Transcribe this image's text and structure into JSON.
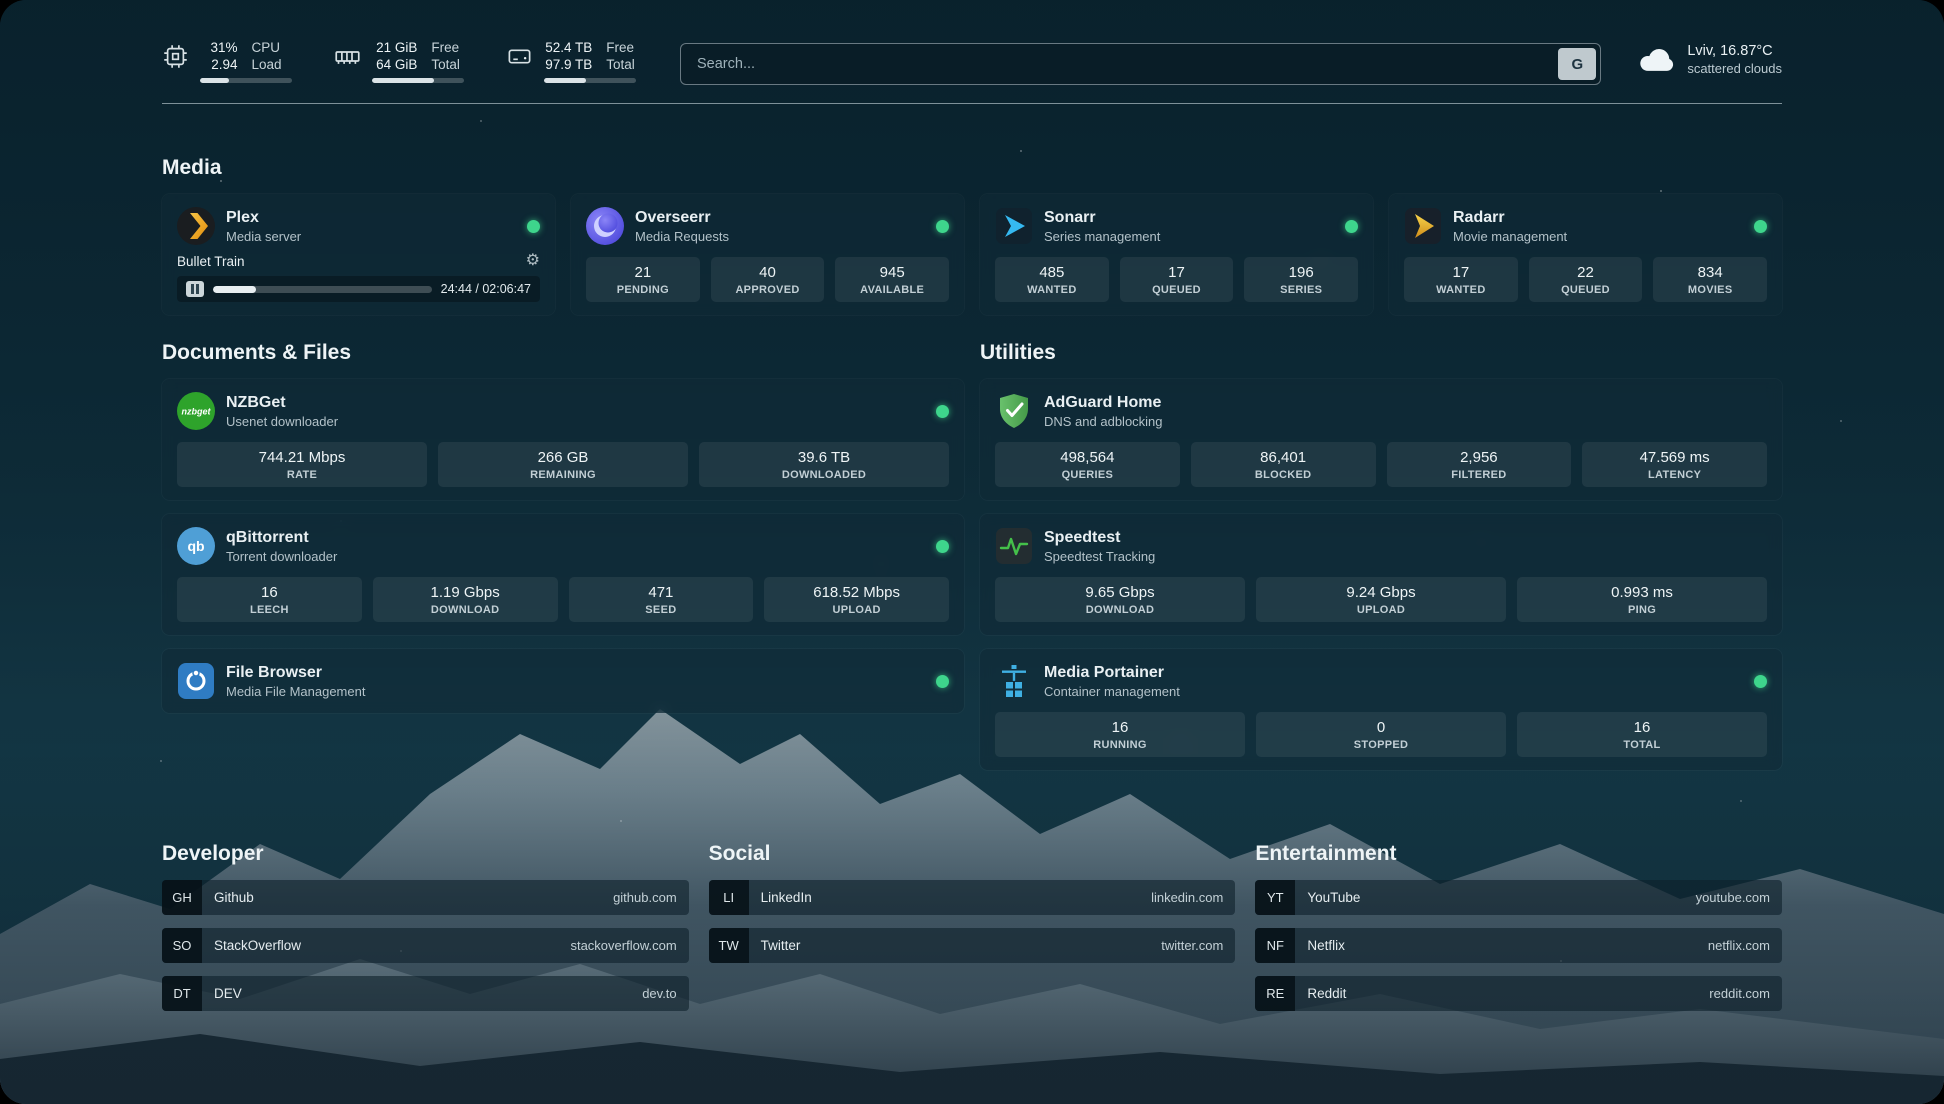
{
  "header": {
    "cpu": {
      "value1": "31%",
      "label1": "CPU",
      "value2": "2.94",
      "label2": "Load",
      "progress": 31
    },
    "ram": {
      "value1": "21 GiB",
      "label1": "Free",
      "value2": "64 GiB",
      "label2": "Total",
      "progress": 67
    },
    "disk": {
      "value1": "52.4 TB",
      "label1": "Free",
      "value2": "97.9 TB",
      "label2": "Total",
      "progress": 46
    },
    "search": {
      "placeholder": "Search...",
      "engine_button": "G"
    },
    "weather": {
      "location": "Lviv, 16.87°C",
      "condition": "scattered clouds"
    }
  },
  "colors": {
    "status_online": "#3ed58c",
    "accent_green": "#44c04a"
  },
  "media": {
    "title": "Media",
    "plex": {
      "name": "Plex",
      "desc": "Media server",
      "now_playing": "Bullet Train",
      "time": "24:44 / 02:06:47",
      "progress": 19.5
    },
    "overseerr": {
      "name": "Overseerr",
      "desc": "Media Requests",
      "stats": [
        {
          "value": "21",
          "label": "PENDING"
        },
        {
          "value": "40",
          "label": "APPROVED"
        },
        {
          "value": "945",
          "label": "AVAILABLE"
        }
      ]
    },
    "sonarr": {
      "name": "Sonarr",
      "desc": "Series management",
      "stats": [
        {
          "value": "485",
          "label": "WANTED"
        },
        {
          "value": "17",
          "label": "QUEUED"
        },
        {
          "value": "196",
          "label": "SERIES"
        }
      ]
    },
    "radarr": {
      "name": "Radarr",
      "desc": "Movie management",
      "stats": [
        {
          "value": "17",
          "label": "WANTED"
        },
        {
          "value": "22",
          "label": "QUEUED"
        },
        {
          "value": "834",
          "label": "MOVIES"
        }
      ]
    }
  },
  "documents": {
    "title": "Documents & Files",
    "nzbget": {
      "name": "NZBGet",
      "desc": "Usenet downloader",
      "icon_text": "nzbget",
      "stats": [
        {
          "value": "744.21 Mbps",
          "label": "RATE"
        },
        {
          "value": "266 GB",
          "label": "REMAINING"
        },
        {
          "value": "39.6 TB",
          "label": "DOWNLOADED"
        }
      ]
    },
    "qbittorrent": {
      "name": "qBittorrent",
      "desc": "Torrent downloader",
      "icon_text": "qb",
      "stats": [
        {
          "value": "16",
          "label": "LEECH"
        },
        {
          "value": "1.19 Gbps",
          "label": "DOWNLOAD"
        },
        {
          "value": "471",
          "label": "SEED"
        },
        {
          "value": "618.52 Mbps",
          "label": "UPLOAD"
        }
      ]
    },
    "filebrowser": {
      "name": "File Browser",
      "desc": "Media File Management"
    }
  },
  "utilities": {
    "title": "Utilities",
    "adguard": {
      "name": "AdGuard Home",
      "desc": "DNS and adblocking",
      "stats": [
        {
          "value": "498,564",
          "label": "QUERIES"
        },
        {
          "value": "86,401",
          "label": "BLOCKED"
        },
        {
          "value": "2,956",
          "label": "FILTERED"
        },
        {
          "value": "47.569 ms",
          "label": "LATENCY"
        }
      ]
    },
    "speedtest": {
      "name": "Speedtest",
      "desc": "Speedtest Tracking",
      "stats": [
        {
          "value": "9.65 Gbps",
          "label": "DOWNLOAD"
        },
        {
          "value": "9.24 Gbps",
          "label": "UPLOAD"
        },
        {
          "value": "0.993 ms",
          "label": "PING"
        }
      ]
    },
    "portainer": {
      "name": "Media Portainer",
      "desc": "Container management",
      "stats": [
        {
          "value": "16",
          "label": "RUNNING"
        },
        {
          "value": "0",
          "label": "STOPPED"
        },
        {
          "value": "16",
          "label": "TOTAL"
        }
      ]
    }
  },
  "bookmarks": {
    "developer": {
      "title": "Developer",
      "items": [
        {
          "abbr": "GH",
          "name": "Github",
          "url": "github.com"
        },
        {
          "abbr": "SO",
          "name": "StackOverflow",
          "url": "stackoverflow.com"
        },
        {
          "abbr": "DT",
          "name": "DEV",
          "url": "dev.to"
        }
      ]
    },
    "social": {
      "title": "Social",
      "items": [
        {
          "abbr": "LI",
          "name": "LinkedIn",
          "url": "linkedin.com"
        },
        {
          "abbr": "TW",
          "name": "Twitter",
          "url": "twitter.com"
        }
      ]
    },
    "entertainment": {
      "title": "Entertainment",
      "items": [
        {
          "abbr": "YT",
          "name": "YouTube",
          "url": "youtube.com"
        },
        {
          "abbr": "NF",
          "name": "Netflix",
          "url": "netflix.com"
        },
        {
          "abbr": "RE",
          "name": "Reddit",
          "url": "reddit.com"
        }
      ]
    }
  }
}
